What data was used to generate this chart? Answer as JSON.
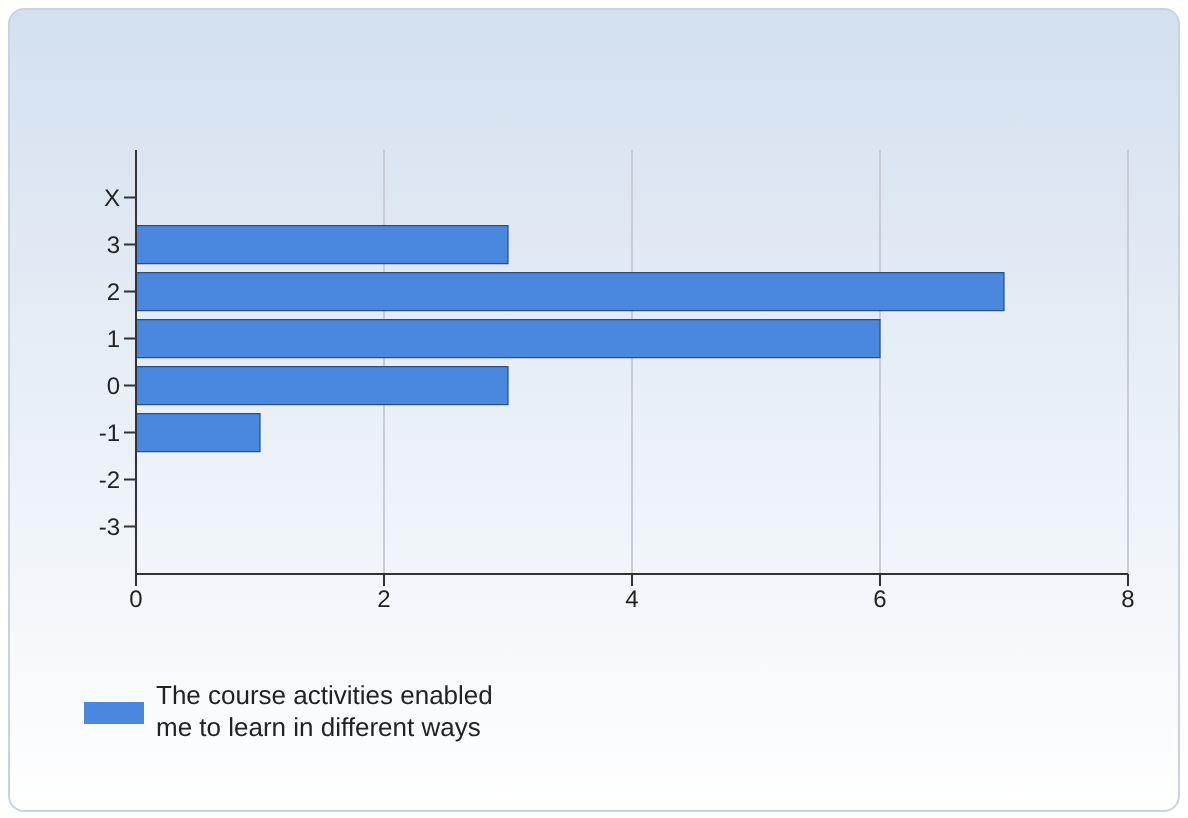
{
  "chart_data": {
    "type": "bar",
    "orientation": "horizontal",
    "categories": [
      "X",
      "3",
      "2",
      "1",
      "0",
      "-1",
      "-2",
      "-3"
    ],
    "series": [
      {
        "name": "The course activities enabled me to learn in different ways",
        "color": "#4a88e0",
        "values": [
          0,
          3,
          7,
          6,
          3,
          1,
          0,
          0
        ]
      }
    ],
    "xlim": [
      0,
      8
    ],
    "xticks": [
      0,
      2,
      4,
      6,
      8
    ],
    "grid": "x",
    "legend": "bottom left"
  }
}
